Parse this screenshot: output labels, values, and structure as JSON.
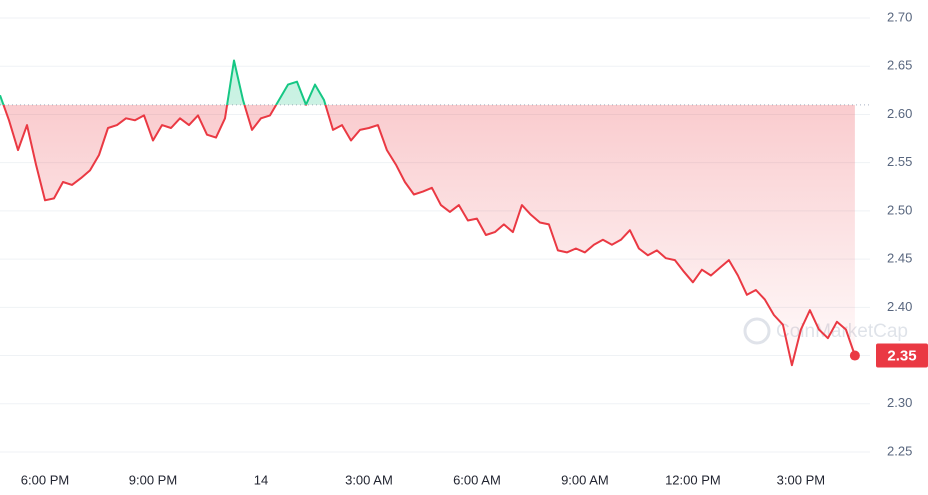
{
  "chart_data": {
    "type": "line",
    "x": [
      16.75,
      17,
      17.25,
      17.5,
      17.75,
      18,
      18.25,
      18.5,
      18.75,
      19,
      19.25,
      19.5,
      19.75,
      20,
      20.25,
      20.5,
      20.75,
      21,
      21.25,
      21.5,
      21.75,
      22,
      22.25,
      22.5,
      22.75,
      23,
      23.25,
      23.5,
      23.75,
      24,
      24.25,
      24.5,
      24.75,
      25,
      25.25,
      25.5,
      25.75,
      26,
      26.25,
      26.5,
      26.75,
      27,
      27.25,
      27.5,
      27.75,
      28,
      28.25,
      28.5,
      28.75,
      29,
      29.25,
      29.5,
      29.75,
      30,
      30.25,
      30.5,
      30.75,
      31,
      31.25,
      31.5,
      31.75,
      32,
      32.25,
      32.5,
      32.75,
      33,
      33.25,
      33.5,
      33.75,
      34,
      34.25,
      34.5,
      34.75,
      35,
      35.25,
      35.5,
      35.75,
      36,
      36.25,
      36.5,
      36.75,
      37,
      37.25,
      37.5,
      37.75,
      38,
      38.25,
      38.5,
      38.75,
      39,
      39.25,
      39.5,
      39.75,
      40,
      40.25,
      40.5
    ],
    "series": [
      {
        "color": "#ea3943",
        "above_color": "#16c784",
        "values": [
          2.62,
          2.594,
          2.563,
          2.589,
          2.548,
          2.511,
          2.513,
          2.53,
          2.527,
          2.534,
          2.542,
          2.558,
          2.586,
          2.589,
          2.596,
          2.594,
          2.599,
          2.573,
          2.589,
          2.586,
          2.596,
          2.589,
          2.599,
          2.579,
          2.576,
          2.596,
          2.656,
          2.615,
          2.584,
          2.596,
          2.599,
          2.615,
          2.631,
          2.634,
          2.61,
          2.631,
          2.615,
          2.584,
          2.589,
          2.573,
          2.584,
          2.586,
          2.589,
          2.563,
          2.548,
          2.53,
          2.517,
          2.52,
          2.524,
          2.506,
          2.499,
          2.506,
          2.49,
          2.492,
          2.475,
          2.478,
          2.486,
          2.478,
          2.506,
          2.496,
          2.488,
          2.486,
          2.459,
          2.457,
          2.461,
          2.457,
          2.465,
          2.47,
          2.465,
          2.47,
          2.48,
          2.461,
          2.454,
          2.459,
          2.451,
          2.449,
          2.437,
          2.426,
          2.439,
          2.433,
          2.441,
          2.449,
          2.433,
          2.413,
          2.418,
          2.408,
          2.392,
          2.382,
          2.34,
          2.377,
          2.397,
          2.377,
          2.368,
          2.385,
          2.377,
          2.35
        ]
      }
    ],
    "baseline": 2.61,
    "xlim": [
      16.75,
      40.92
    ],
    "xticks": [
      {
        "value": 18,
        "label": "6:00 PM"
      },
      {
        "value": 21,
        "label": "9:00 PM"
      },
      {
        "value": 24,
        "label": "14"
      },
      {
        "value": 27,
        "label": "3:00 AM"
      },
      {
        "value": 30,
        "label": "6:00 AM"
      },
      {
        "value": 33,
        "label": "9:00 AM"
      },
      {
        "value": 36,
        "label": "12:00 PM"
      },
      {
        "value": 39,
        "label": "3:00 PM"
      }
    ],
    "ylim": [
      2.2365,
      2.7187
    ],
    "yticks": [
      2.25,
      {
        "value": 2.3,
        "label": "2.30"
      },
      2.35,
      {
        "value": 2.4,
        "label": "2.40"
      },
      2.45,
      {
        "value": 2.5,
        "label": "2.50"
      },
      2.55,
      {
        "value": 2.6,
        "label": "2.60"
      },
      2.65,
      {
        "value": 2.7,
        "label": "2.70"
      }
    ],
    "grid": true,
    "watermark": "CoinMarketCap"
  }
}
